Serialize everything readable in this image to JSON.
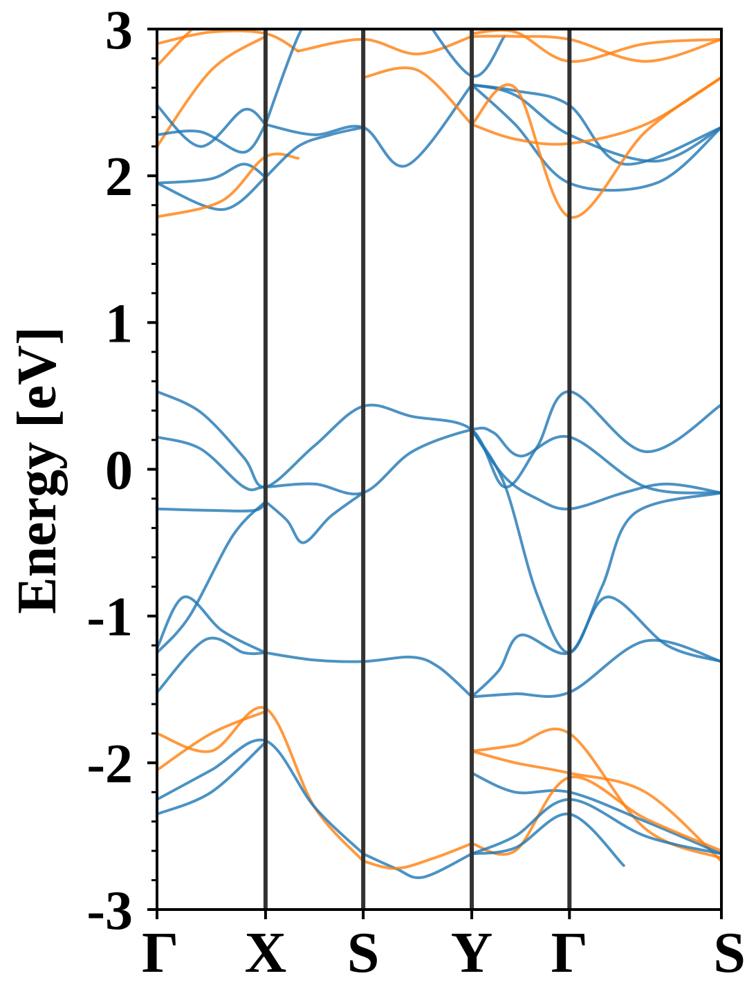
{
  "chart_data": {
    "type": "line",
    "title": "",
    "ylabel": "Energy [eV]",
    "xlabel": "",
    "ylim": [
      -3,
      3
    ],
    "y_ticks": [
      "-3",
      "-2",
      "-1",
      "0",
      "1",
      "2",
      "3"
    ],
    "x_ticks": [
      {
        "label": "Γ",
        "k": 0
      },
      {
        "label": "X",
        "k": 1
      },
      {
        "label": "S",
        "k": 1.9
      },
      {
        "label": "Y",
        "k": 2.9
      },
      {
        "label": "Γ",
        "k": 3.8
      },
      {
        "label": "S",
        "k": 5.2
      }
    ],
    "colors": {
      "blue": "#1f77b4",
      "orange": "#ff7f0e",
      "kline": "#333333"
    },
    "bands": [
      {
        "color": "blue",
        "k": [
          0,
          0.4,
          0.8,
          1,
          1.45,
          1.9,
          2.35,
          2.9,
          3.2,
          3.5,
          3.8,
          4.5,
          5.2
        ],
        "e": [
          0.53,
          0.39,
          0.08,
          -0.12,
          0.16,
          0.43,
          0.36,
          0.27,
          -0.12,
          0.15,
          0.53,
          0.12,
          0.44
        ]
      },
      {
        "color": "blue",
        "k": [
          0,
          0.4,
          0.8,
          1,
          1.45,
          1.9,
          2.35,
          2.9,
          3.1,
          3.35,
          3.8,
          4.5,
          5.2
        ],
        "e": [
          0.22,
          0.14,
          -0.12,
          -0.12,
          -0.1,
          -0.16,
          0.12,
          0.27,
          0.25,
          0.09,
          0.22,
          -0.12,
          -0.16
        ]
      },
      {
        "color": "blue",
        "k": [
          0,
          0.5,
          0.9,
          1
        ],
        "e": [
          -0.27,
          -0.28,
          -0.28,
          -0.22
        ]
      },
      {
        "color": "blue",
        "k": [
          1,
          1.2,
          1.35,
          1.6,
          1.9
        ],
        "e": [
          -0.22,
          -0.35,
          -0.5,
          -0.32,
          -0.16
        ]
      },
      {
        "color": "blue",
        "k": [
          2.9,
          3.2,
          3.5,
          3.8,
          4.3,
          4.7,
          5.2
        ],
        "e": [
          0.27,
          -0.05,
          -0.2,
          -0.27,
          -0.16,
          -0.1,
          -0.16
        ]
      },
      {
        "color": "blue",
        "k": [
          0,
          0.3,
          0.7,
          1
        ],
        "e": [
          -1.25,
          -1.0,
          -0.45,
          -0.22
        ]
      },
      {
        "color": "blue",
        "k": [
          2.9,
          3.2,
          3.5,
          3.8,
          4.1,
          4.4,
          5.2
        ],
        "e": [
          0.27,
          -0.1,
          -0.85,
          -1.25,
          -0.8,
          -0.3,
          -0.16
        ]
      },
      {
        "color": "blue",
        "k": [
          0,
          0.25,
          0.6,
          1
        ],
        "e": [
          -1.22,
          -0.87,
          -1.1,
          -1.25
        ]
      },
      {
        "color": "blue",
        "k": [
          0,
          0.45,
          0.8,
          1
        ],
        "e": [
          -1.52,
          -1.16,
          -1.25,
          -1.25
        ]
      },
      {
        "color": "blue",
        "k": [
          1,
          1.45,
          1.9,
          2.35,
          2.6,
          2.9
        ],
        "e": [
          -1.25,
          -1.3,
          -1.31,
          -1.28,
          -1.35,
          -1.55
        ]
      },
      {
        "color": "blue",
        "k": [
          2.9,
          3.15,
          3.35,
          3.8,
          4.15,
          4.7,
          5.2
        ],
        "e": [
          -1.55,
          -1.37,
          -1.13,
          -1.25,
          -0.87,
          -1.2,
          -1.31
        ]
      },
      {
        "color": "blue",
        "k": [
          2.9,
          3.3,
          3.8,
          4.5,
          5.2
        ],
        "e": [
          -1.55,
          -1.53,
          -1.52,
          -1.17,
          -1.31
        ]
      },
      {
        "color": "orange",
        "k": [
          0,
          0.5,
          1,
          1.45,
          1.9
        ],
        "e": [
          -1.8,
          -1.92,
          -1.63,
          -2.3,
          -2.67
        ]
      },
      {
        "color": "orange",
        "k": [
          0,
          0.5,
          1
        ],
        "e": [
          -2.05,
          -1.8,
          -1.65
        ]
      },
      {
        "color": "blue",
        "k": [
          0,
          0.5,
          1,
          1.45,
          1.9
        ],
        "e": [
          -2.25,
          -2.05,
          -1.85,
          -2.3,
          -2.62
        ]
      },
      {
        "color": "blue",
        "k": [
          0,
          0.5,
          1
        ],
        "e": [
          -2.35,
          -2.2,
          -1.86
        ]
      },
      {
        "color": "blue",
        "k": [
          1.9,
          2.2,
          2.45,
          2.9
        ],
        "e": [
          -2.62,
          -2.72,
          -2.78,
          -2.62
        ]
      },
      {
        "color": "orange",
        "k": [
          1.9,
          2.2,
          2.55,
          2.9
        ],
        "e": [
          -2.67,
          -2.72,
          -2.65,
          -2.55
        ]
      },
      {
        "color": "orange",
        "k": [
          2.9,
          3.3,
          3.8,
          4.5,
          5.2
        ],
        "e": [
          -1.92,
          -1.88,
          -1.8,
          -2.45,
          -2.65
        ]
      },
      {
        "color": "orange",
        "k": [
          2.9,
          3.3,
          3.8,
          4.5,
          5.2
        ],
        "e": [
          -1.92,
          -2.0,
          -2.07,
          -2.2,
          -2.67
        ]
      },
      {
        "color": "blue",
        "k": [
          2.9,
          3.3,
          3.8,
          4.5,
          5.2
        ],
        "e": [
          -2.07,
          -2.2,
          -2.2,
          -2.4,
          -2.62
        ]
      },
      {
        "color": "orange",
        "k": [
          2.9,
          3.3,
          3.8,
          4.5,
          5.2
        ],
        "e": [
          -2.55,
          -2.6,
          -2.1,
          -2.38,
          -2.6
        ]
      },
      {
        "color": "blue",
        "k": [
          2.9,
          3.3,
          3.8,
          4.5,
          5.2
        ],
        "e": [
          -2.62,
          -2.5,
          -2.25,
          -2.5,
          -2.62
        ]
      },
      {
        "color": "blue",
        "k": [
          2.9,
          3.3,
          3.8,
          4.3
        ],
        "e": [
          -2.62,
          -2.58,
          -2.35,
          -2.7
        ]
      },
      {
        "color": "orange",
        "k": [
          0,
          0.5,
          1
        ],
        "e": [
          2.2,
          2.72,
          2.95
        ]
      },
      {
        "color": "orange",
        "k": [
          0,
          0.5,
          1
        ],
        "e": [
          2.75,
          3.1,
          3.15
        ]
      },
      {
        "color": "blue",
        "k": [
          0,
          0.4,
          0.8,
          1
        ],
        "e": [
          2.28,
          2.3,
          2.16,
          2.35
        ]
      },
      {
        "color": "blue",
        "k": [
          0,
          0.4,
          0.8,
          1
        ],
        "e": [
          2.48,
          2.2,
          2.45,
          2.35
        ]
      },
      {
        "color": "blue",
        "k": [
          0,
          0.5,
          0.8,
          1
        ],
        "e": [
          1.95,
          1.98,
          2.08,
          1.99
        ]
      },
      {
        "color": "blue",
        "k": [
          0,
          0.6,
          1
        ],
        "e": [
          1.95,
          1.77,
          1.99
        ]
      },
      {
        "color": "orange",
        "k": [
          0,
          0.6,
          1,
          1.3
        ],
        "e": [
          1.72,
          1.83,
          2.13,
          2.12
        ]
      },
      {
        "color": "orange",
        "k": [
          0,
          0.5,
          1,
          1.3
        ],
        "e": [
          2.9,
          2.98,
          2.97,
          2.85
        ]
      },
      {
        "color": "blue",
        "k": [
          1,
          1.45,
          1.9,
          2.3,
          2.9
        ],
        "e": [
          2.35,
          2.28,
          2.33,
          2.07,
          2.62
        ]
      },
      {
        "color": "blue",
        "k": [
          1,
          1.3,
          1.6,
          1.9
        ],
        "e": [
          1.99,
          2.2,
          2.28,
          2.33
        ]
      },
      {
        "color": "blue",
        "k": [
          1,
          1.3,
          1.5,
          1.9
        ],
        "e": [
          2.35,
          2.95,
          3.15,
          3.2
        ]
      },
      {
        "color": "orange",
        "k": [
          1.9,
          2.4,
          2.9
        ],
        "e": [
          2.67,
          2.72,
          2.35
        ]
      },
      {
        "color": "orange",
        "k": [
          1.3,
          1.9,
          2.4,
          2.9
        ],
        "e": [
          2.85,
          2.93,
          2.83,
          2.95
        ]
      },
      {
        "color": "blue",
        "k": [
          2.4,
          2.9,
          3.2
        ],
        "e": [
          3.15,
          2.68,
          2.95
        ]
      },
      {
        "color": "blue",
        "k": [
          2.9,
          3.3,
          3.8,
          4.3,
          5.2
        ],
        "e": [
          2.62,
          2.58,
          2.48,
          2.08,
          2.33
        ]
      },
      {
        "color": "blue",
        "k": [
          2.9,
          3.3,
          3.8,
          4.6,
          5.2
        ],
        "e": [
          2.62,
          2.55,
          2.28,
          2.1,
          2.33
        ]
      },
      {
        "color": "blue",
        "k": [
          2.9,
          3.3,
          3.8,
          4.6,
          5.2
        ],
        "e": [
          2.62,
          2.35,
          1.95,
          1.95,
          2.33
        ]
      },
      {
        "color": "orange",
        "k": [
          2.9,
          3.3,
          3.8,
          4.5,
          5.2
        ],
        "e": [
          2.35,
          2.25,
          2.22,
          2.35,
          2.67
        ]
      },
      {
        "color": "orange",
        "k": [
          2.9,
          3.3,
          3.8,
          4.5,
          5.2
        ],
        "e": [
          2.35,
          2.6,
          1.72,
          2.3,
          2.67
        ]
      },
      {
        "color": "orange",
        "k": [
          2.9,
          3.3,
          3.8,
          4.5,
          5.2
        ],
        "e": [
          2.97,
          2.98,
          2.78,
          2.9,
          2.93
        ]
      },
      {
        "color": "orange",
        "k": [
          2.9,
          3.3,
          3.8,
          4.5,
          5.2
        ],
        "e": [
          2.95,
          2.95,
          2.93,
          2.78,
          2.93
        ]
      }
    ]
  }
}
